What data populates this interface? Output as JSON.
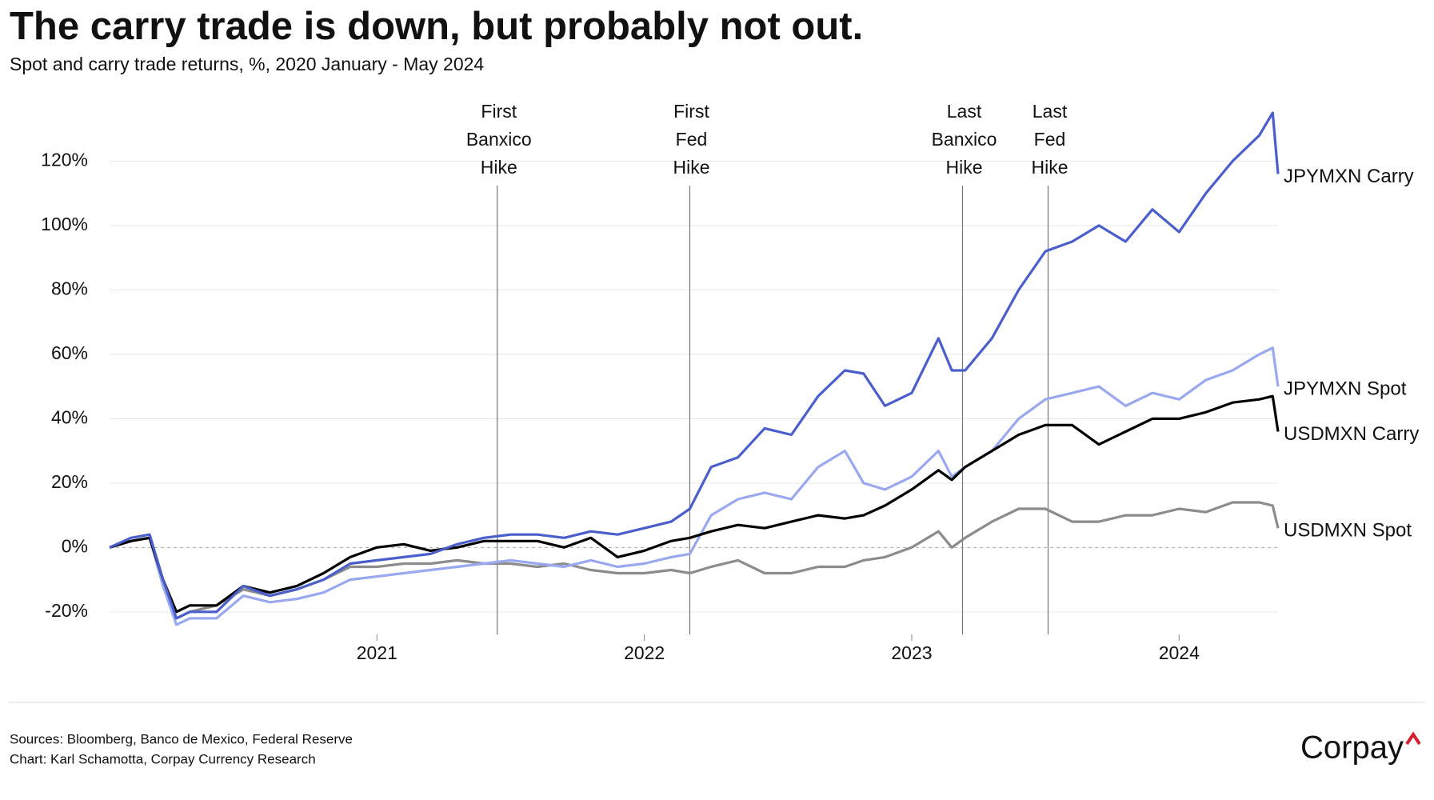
{
  "chart_data": {
    "type": "line",
    "title": "The carry trade is down, but probably not out.",
    "subtitle": "Spot and carry trade returns, %, 2020 January - May 2024",
    "x": [
      2020.0,
      2020.08,
      2020.15,
      2020.2,
      2020.25,
      2020.3,
      2020.4,
      2020.5,
      2020.6,
      2020.7,
      2020.8,
      2020.9,
      2021.0,
      2021.1,
      2021.2,
      2021.3,
      2021.4,
      2021.5,
      2021.6,
      2021.7,
      2021.8,
      2021.9,
      2022.0,
      2022.1,
      2022.17,
      2022.25,
      2022.35,
      2022.45,
      2022.55,
      2022.65,
      2022.75,
      2022.82,
      2022.9,
      2023.0,
      2023.1,
      2023.15,
      2023.2,
      2023.3,
      2023.4,
      2023.5,
      2023.6,
      2023.7,
      2023.8,
      2023.9,
      2024.0,
      2024.1,
      2024.2,
      2024.3,
      2024.35,
      2024.37
    ],
    "series": [
      {
        "name": "USDMXN Spot",
        "color": "#8c8c8c",
        "values": [
          0,
          2,
          3,
          -12,
          -22,
          -20,
          -18,
          -13,
          -15,
          -13,
          -10,
          -6,
          -6,
          -5,
          -5,
          -4,
          -5,
          -5,
          -6,
          -5,
          -7,
          -8,
          -8,
          -7,
          -8,
          -6,
          -4,
          -8,
          -8,
          -6,
          -6,
          -4,
          -3,
          0,
          5,
          0,
          3,
          8,
          12,
          12,
          8,
          8,
          10,
          10,
          12,
          11,
          14,
          14,
          13,
          6
        ]
      },
      {
        "name": "JPYMXN Spot",
        "color": "#9aa8f0",
        "values": [
          0,
          2,
          3,
          -12,
          -24,
          -22,
          -22,
          -15,
          -17,
          -16,
          -14,
          -10,
          -9,
          -8,
          -7,
          -6,
          -5,
          -4,
          -5,
          -6,
          -4,
          -6,
          -5,
          -3,
          -2,
          10,
          15,
          17,
          15,
          25,
          30,
          20,
          18,
          22,
          30,
          22,
          25,
          30,
          40,
          46,
          48,
          50,
          44,
          48,
          46,
          52,
          55,
          60,
          62,
          50
        ]
      },
      {
        "name": "USDMXN Carry",
        "color": "#000000",
        "values": [
          0,
          2,
          3,
          -10,
          -20,
          -18,
          -18,
          -12,
          -14,
          -12,
          -8,
          -3,
          0,
          1,
          -1,
          0,
          2,
          2,
          2,
          0,
          3,
          -3,
          -1,
          2,
          3,
          5,
          7,
          6,
          8,
          10,
          9,
          10,
          13,
          18,
          24,
          21,
          25,
          30,
          35,
          38,
          38,
          32,
          36,
          40,
          40,
          42,
          45,
          46,
          47,
          36
        ]
      },
      {
        "name": "JPYMXN Carry",
        "color": "#4a5fcc",
        "values": [
          0,
          3,
          4,
          -10,
          -22,
          -20,
          -20,
          -12,
          -15,
          -13,
          -10,
          -5,
          -4,
          -3,
          -2,
          1,
          3,
          4,
          4,
          3,
          5,
          4,
          6,
          8,
          12,
          25,
          28,
          37,
          35,
          47,
          55,
          54,
          44,
          48,
          65,
          55,
          55,
          65,
          80,
          92,
          95,
          100,
          95,
          105,
          98,
          110,
          120,
          128,
          135,
          116
        ]
      }
    ],
    "xlim": [
      2020.0,
      2024.37
    ],
    "xticks": [
      2021,
      2022,
      2023,
      2024
    ],
    "ylim": [
      -27,
      137
    ],
    "yticks": [
      {
        "value": -20,
        "label": "-20%"
      },
      {
        "value": 0,
        "label": "0%"
      },
      {
        "value": 20,
        "label": "20%"
      },
      {
        "value": 40,
        "label": "40%"
      },
      {
        "value": 60,
        "label": "60%"
      },
      {
        "value": 80,
        "label": "80%"
      },
      {
        "value": 100,
        "label": "100%"
      },
      {
        "value": 120,
        "label": "120%"
      }
    ],
    "grid": true,
    "annotations": [
      {
        "x": 2021.45,
        "label": [
          "First",
          "Banxico",
          "Hike"
        ]
      },
      {
        "x": 2022.17,
        "label": [
          "First",
          "Fed",
          "Hike"
        ]
      },
      {
        "x": 2023.19,
        "label": [
          "Last",
          "Banxico",
          "Hike"
        ]
      },
      {
        "x": 2023.51,
        "label": [
          "Last",
          "Fed",
          "Hike"
        ]
      }
    ]
  },
  "footer": {
    "sources": "Sources: Bloomberg, Banco de Mexico, Federal Reserve",
    "credit": "Chart: Karl Schamotta, Corpay Currency Research",
    "logo": "Corpay"
  }
}
